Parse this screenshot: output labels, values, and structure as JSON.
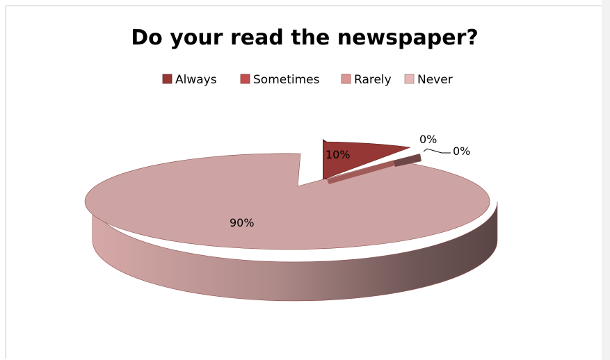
{
  "chart_data": {
    "type": "pie",
    "title": "Do your read the newspaper?",
    "categories": [
      "Always",
      "Sometimes",
      "Rarely",
      "Never"
    ],
    "values": [
      10,
      0,
      0,
      90
    ],
    "labels": [
      "10%",
      "0%",
      "0%",
      "90%"
    ],
    "colors": [
      "#953735",
      "#c0504d",
      "#d99694",
      "#e6b9b8"
    ],
    "legend_position": "top",
    "is_3d": true
  }
}
